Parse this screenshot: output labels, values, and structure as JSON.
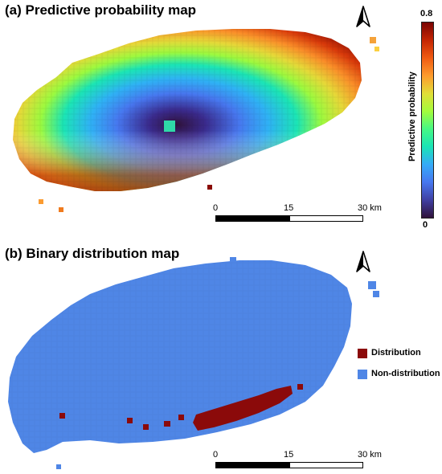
{
  "panels": {
    "a": {
      "title": "(a) Predictive probability map"
    },
    "b": {
      "title": "(b) Binary distribution map"
    }
  },
  "colorbar": {
    "title": "Predictive probability",
    "max_label": "0.8",
    "min_label": "0",
    "colormap": "turbo",
    "stops": [
      "#7a0403",
      "#c42503",
      "#f05b12",
      "#fe9b2d",
      "#e1dd37",
      "#a4fc3c",
      "#46f884",
      "#1ae4b6",
      "#35abf8",
      "#4777ef",
      "#4040a3",
      "#30123b"
    ]
  },
  "scalebar": {
    "labels": [
      "0",
      "15",
      "30 km"
    ]
  },
  "legend": {
    "items": [
      {
        "label": "Distribution",
        "color": "#8b0a0a"
      },
      {
        "label": "Non-distribution",
        "color": "#4f86e6"
      }
    ]
  },
  "north_arrow": {
    "icon": "north-arrow-icon"
  }
}
